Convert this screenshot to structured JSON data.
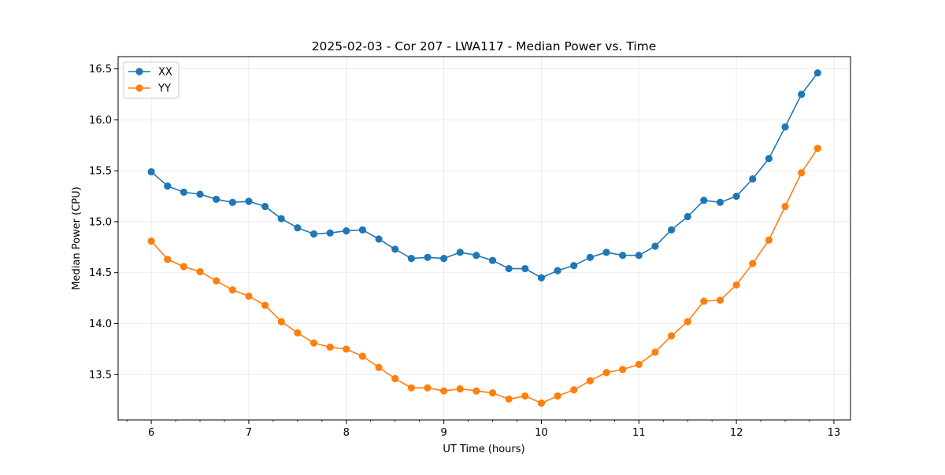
{
  "chart_data": {
    "type": "line",
    "title": "2025-02-03 - Cor 207 - LWA117 - Median Power vs. Time",
    "xlabel": "UT Time (hours)",
    "ylabel": "Median Power (CPU)",
    "xlim": [
      5.66,
      13.17
    ],
    "ylim": [
      13.055,
      16.62
    ],
    "xticks": [
      6,
      7,
      8,
      9,
      10,
      11,
      12,
      13
    ],
    "yticks": [
      13.5,
      14.0,
      14.5,
      15.0,
      15.5,
      16.0,
      16.5
    ],
    "xtick_labels": [
      "6",
      "7",
      "8",
      "9",
      "10",
      "11",
      "12",
      "13"
    ],
    "ytick_labels": [
      "13.5",
      "14.0",
      "14.5",
      "15.0",
      "15.5",
      "16.0",
      "16.5"
    ],
    "grid": true,
    "legend_position": "top-left",
    "x": [
      6.0,
      6.1667,
      6.3333,
      6.5,
      6.6667,
      6.8333,
      7.0,
      7.1667,
      7.3333,
      7.5,
      7.6667,
      7.8333,
      8.0,
      8.1667,
      8.3333,
      8.5,
      8.6667,
      8.8333,
      9.0,
      9.1667,
      9.3333,
      9.5,
      9.6667,
      9.8333,
      10.0,
      10.1667,
      10.3333,
      10.5,
      10.6667,
      10.8333,
      11.0,
      11.1667,
      11.3333,
      11.5,
      11.6667,
      11.8333,
      12.0,
      12.1667,
      12.3333,
      12.5,
      12.6667,
      12.8333
    ],
    "series": [
      {
        "name": "XX",
        "color": "#1f77b4",
        "values": [
          15.49,
          15.35,
          15.29,
          15.27,
          15.22,
          15.19,
          15.2,
          15.15,
          15.03,
          14.94,
          14.88,
          14.89,
          14.91,
          14.92,
          14.83,
          14.73,
          14.64,
          14.65,
          14.64,
          14.7,
          14.67,
          14.62,
          14.54,
          14.54,
          14.45,
          14.52,
          14.57,
          14.65,
          14.7,
          14.67,
          14.67,
          14.76,
          14.92,
          15.05,
          15.21,
          15.19,
          15.25,
          15.42,
          15.62,
          15.93,
          16.25,
          16.46
        ]
      },
      {
        "name": "YY",
        "color": "#ff7f0e",
        "values": [
          14.81,
          14.63,
          14.56,
          14.51,
          14.42,
          14.33,
          14.27,
          14.18,
          14.02,
          13.91,
          13.81,
          13.77,
          13.75,
          13.68,
          13.57,
          13.46,
          13.37,
          13.37,
          13.34,
          13.36,
          13.34,
          13.32,
          13.26,
          13.29,
          13.22,
          13.29,
          13.35,
          13.44,
          13.52,
          13.55,
          13.6,
          13.72,
          13.88,
          14.02,
          14.22,
          14.23,
          14.38,
          14.59,
          14.82,
          15.15,
          15.48,
          15.72
        ]
      }
    ]
  }
}
